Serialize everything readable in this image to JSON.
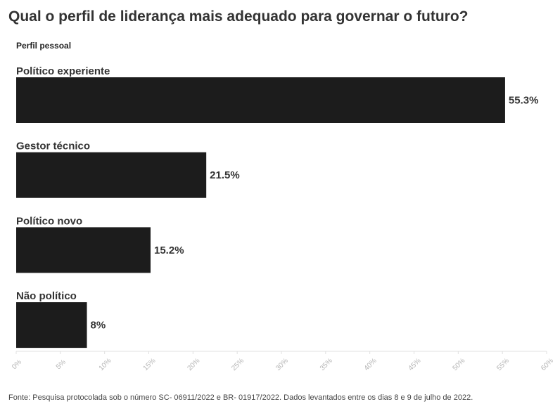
{
  "page": {
    "title": "Qual o perfil de liderança mais adequado para governar o futuro?",
    "subtitle": "Perfil pessoal",
    "footer": "Fonte: Pesquisa protocolada sob o número SC- 06911/2022 e BR- 01917/2022. Dados levantados entre os dias 8 e 9 de julho de 2022."
  },
  "chart_data": {
    "type": "bar",
    "orientation": "horizontal",
    "categories": [
      "Político experiente",
      "Gestor técnico",
      "Político novo",
      "Não político"
    ],
    "values": [
      55.3,
      21.5,
      15.2,
      8
    ],
    "value_labels": [
      "55.3%",
      "21.5%",
      "15.2%",
      "8%"
    ],
    "title": "Qual o perfil de liderança mais adequado para governar o futuro?",
    "subtitle": "Perfil pessoal",
    "xlabel": "",
    "ylabel": "",
    "xlim": [
      0,
      60
    ],
    "x_ticks": [
      0,
      5,
      10,
      15,
      20,
      25,
      30,
      35,
      40,
      45,
      50,
      55,
      60
    ],
    "x_tick_labels": [
      "0%",
      "5%",
      "10%",
      "15%",
      "20%",
      "25%",
      "30%",
      "35%",
      "40%",
      "45%",
      "50%",
      "55%",
      "60%"
    ],
    "grid": false,
    "legend": "none",
    "colors": {
      "bar": "#1c1c1c",
      "tick": "#b5b5b5",
      "axis": "#e0e0e0"
    }
  }
}
